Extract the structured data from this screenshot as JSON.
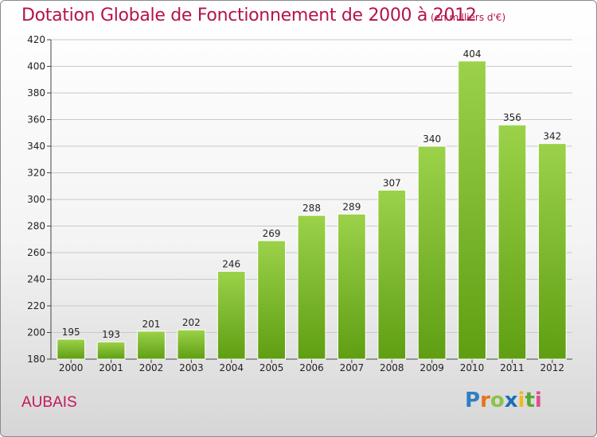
{
  "title": "Dotation Globale de Fonctionnement de 2000 à 2012",
  "subtitle": "(en milliers d'€)",
  "commune": "AUBAIS",
  "logo": {
    "letters": [
      "P",
      "r",
      "o",
      "x",
      "i",
      "t",
      "i"
    ],
    "colors": [
      "#2f7fc1",
      "#e8731a",
      "#8bc34a",
      "#1d6fb8",
      "#f2b81d",
      "#5aa832",
      "#e54b8c"
    ]
  },
  "colors": {
    "title": "#b5124e",
    "bar_light": "#9bd24a",
    "bar_dark": "#5f9e12",
    "grid": "#c8c8c8"
  },
  "chart_data": {
    "type": "bar",
    "categories": [
      "2000",
      "2001",
      "2002",
      "2003",
      "2004",
      "2005",
      "2006",
      "2007",
      "2008",
      "2009",
      "2010",
      "2011",
      "2012"
    ],
    "values": [
      195,
      193,
      201,
      202,
      246,
      269,
      288,
      289,
      307,
      340,
      404,
      356,
      342
    ],
    "ylim": [
      180,
      420
    ],
    "yticks": [
      180,
      200,
      220,
      240,
      260,
      280,
      300,
      320,
      340,
      360,
      380,
      400,
      420
    ],
    "grid": true
  }
}
